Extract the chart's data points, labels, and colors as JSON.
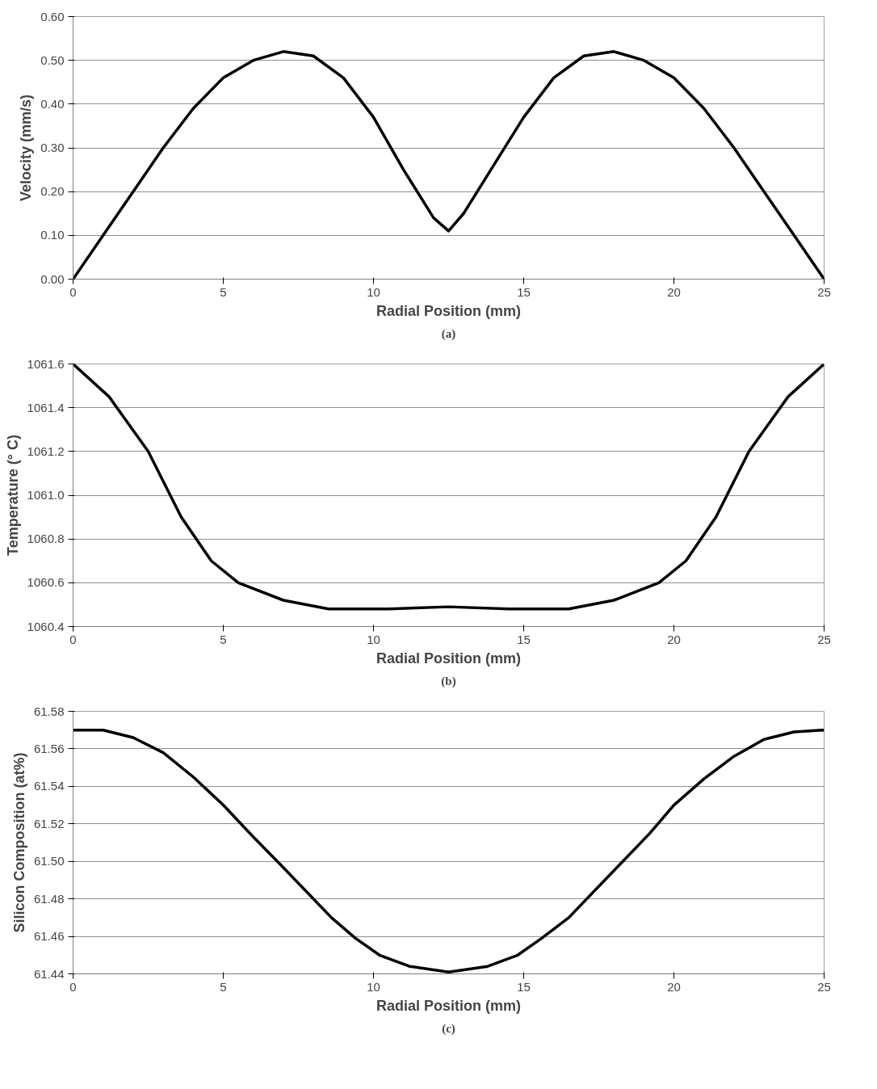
{
  "chart_data": [
    {
      "type": "line",
      "xlabel": "Radial Position (mm)",
      "ylabel": "Velocity (mm/s)",
      "annotations": [
        "(a)"
      ],
      "xlim": [
        0,
        25
      ],
      "xticks": [
        0,
        5,
        10,
        15,
        20,
        25
      ],
      "ylim": [
        0,
        0.6
      ],
      "yticks": [
        {
          "value": 0,
          "label": "0.00"
        },
        {
          "value": 0.1,
          "label": "0.10"
        },
        {
          "value": 0.2,
          "label": "0.20"
        },
        {
          "value": 0.3,
          "label": "0.30"
        },
        {
          "value": 0.4,
          "label": "0.40"
        },
        {
          "value": 0.5,
          "label": "0.50"
        },
        {
          "value": 0.6,
          "label": "0.60"
        }
      ],
      "grid": "y",
      "series": [
        {
          "color": "#000000",
          "x": [
            0,
            1,
            2,
            3,
            4,
            5,
            6,
            7,
            8,
            9,
            10,
            11,
            12,
            12.5,
            13,
            14,
            15,
            16,
            17,
            18,
            19,
            20,
            21,
            22,
            23,
            24,
            25
          ],
          "values": [
            0,
            0.1,
            0.2,
            0.3,
            0.39,
            0.46,
            0.5,
            0.52,
            0.51,
            0.46,
            0.37,
            0.25,
            0.14,
            0.11,
            0.15,
            0.26,
            0.37,
            0.46,
            0.51,
            0.52,
            0.5,
            0.46,
            0.39,
            0.3,
            0.2,
            0.1,
            0
          ]
        }
      ]
    },
    {
      "type": "line",
      "xlabel": "Radial Position (mm)",
      "ylabel": "Temperature (° C)",
      "annotations": [
        "(b)"
      ],
      "xlim": [
        0,
        25
      ],
      "xticks": [
        0,
        5,
        10,
        15,
        20,
        25
      ],
      "ylim": [
        1060.4,
        1061.6
      ],
      "yticks": [
        {
          "value": 1060.4,
          "label": "1060.4"
        },
        {
          "value": 1060.6,
          "label": "1060.6"
        },
        {
          "value": 1060.8,
          "label": "1060.8"
        },
        {
          "value": 1061.0,
          "label": "1061.0"
        },
        {
          "value": 1061.2,
          "label": "1061.2"
        },
        {
          "value": 1061.4,
          "label": "1061.4"
        },
        {
          "value": 1061.6,
          "label": "1061.6"
        }
      ],
      "grid": "y",
      "series": [
        {
          "color": "#000000",
          "x": [
            0,
            1.2,
            2.5,
            3.6,
            4.6,
            5.5,
            7,
            8.5,
            10.5,
            12.5,
            14.5,
            16.5,
            18,
            19.5,
            20.4,
            21.4,
            22.5,
            23.8,
            25
          ],
          "values": [
            1061.6,
            1061.45,
            1061.2,
            1060.9,
            1060.7,
            1060.6,
            1060.52,
            1060.48,
            1060.48,
            1060.49,
            1060.48,
            1060.48,
            1060.52,
            1060.6,
            1060.7,
            1060.9,
            1061.2,
            1061.45,
            1061.6
          ]
        }
      ]
    },
    {
      "type": "line",
      "xlabel": "Radial Position (mm)",
      "ylabel": "Silicon Composition (at%)",
      "annotations": [
        "(c)"
      ],
      "xlim": [
        0,
        25
      ],
      "xticks": [
        0,
        5,
        10,
        15,
        20,
        25
      ],
      "ylim": [
        61.44,
        61.58
      ],
      "yticks": [
        {
          "value": 61.44,
          "label": "61.44"
        },
        {
          "value": 61.46,
          "label": "61.46"
        },
        {
          "value": 61.48,
          "label": "61.48"
        },
        {
          "value": 61.5,
          "label": "61.50"
        },
        {
          "value": 61.52,
          "label": "61.52"
        },
        {
          "value": 61.54,
          "label": "61.54"
        },
        {
          "value": 61.56,
          "label": "61.56"
        },
        {
          "value": 61.58,
          "label": "61.58"
        }
      ],
      "grid": "y",
      "series": [
        {
          "color": "#000000",
          "x": [
            0,
            1,
            2,
            3,
            4,
            5,
            6,
            6.8,
            7.7,
            8.6,
            9.4,
            10.2,
            11.2,
            12.5,
            13.8,
            14.8,
            15.6,
            16.5,
            17.4,
            18.3,
            19.2,
            20,
            21,
            22,
            23,
            24,
            25
          ],
          "values": [
            61.57,
            61.57,
            61.566,
            61.558,
            61.545,
            61.53,
            61.513,
            61.5,
            61.485,
            61.47,
            61.459,
            61.45,
            61.444,
            61.441,
            61.444,
            61.45,
            61.459,
            61.47,
            61.485,
            61.5,
            61.515,
            61.53,
            61.544,
            61.556,
            61.565,
            61.569,
            61.57
          ]
        }
      ]
    }
  ]
}
